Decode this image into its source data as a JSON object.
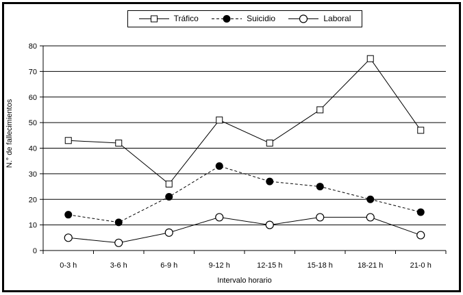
{
  "chart_data": {
    "type": "line",
    "title": "",
    "xlabel": "Intervalo horario",
    "ylabel": "N.° de fallecimientos",
    "categories": [
      "0-3 h",
      "3-6 h",
      "6-9 h",
      "9-12 h",
      "12-15 h",
      "15-18 h",
      "18-21 h",
      "21-0 h"
    ],
    "series": [
      {
        "name": "Tráfico",
        "values": [
          43,
          42,
          26,
          51,
          42,
          55,
          75,
          47
        ],
        "line": "solid",
        "marker": "open-square"
      },
      {
        "name": "Suicidio",
        "values": [
          14,
          11,
          21,
          33,
          27,
          25,
          20,
          15
        ],
        "line": "dashed",
        "marker": "filled-circle"
      },
      {
        "name": "Laboral",
        "values": [
          5,
          3,
          7,
          13,
          10,
          13,
          13,
          6
        ],
        "line": "solid",
        "marker": "open-circle"
      }
    ],
    "ylim": [
      0,
      80
    ],
    "yticks": [
      0,
      10,
      20,
      30,
      40,
      50,
      60,
      70,
      80
    ],
    "grid": "horizontal",
    "legend_position": "top-center",
    "colors": {
      "foreground": "#000000",
      "background": "#ffffff"
    }
  }
}
